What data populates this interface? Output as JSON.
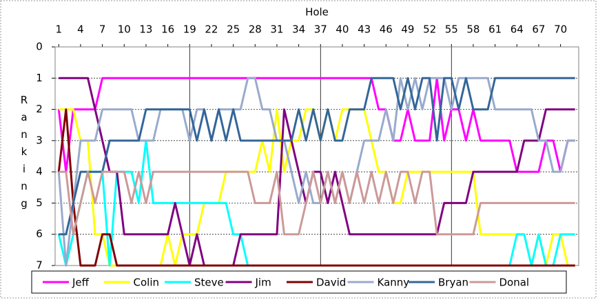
{
  "chart_data": {
    "type": "line",
    "x_label": "Hole",
    "y_label": "Ranking",
    "x": [
      1,
      2,
      3,
      4,
      5,
      6,
      7,
      8,
      9,
      10,
      11,
      12,
      13,
      14,
      15,
      16,
      17,
      18,
      19,
      20,
      21,
      22,
      23,
      24,
      25,
      26,
      27,
      28,
      29,
      30,
      31,
      32,
      33,
      34,
      35,
      36,
      37,
      38,
      39,
      40,
      41,
      42,
      43,
      44,
      45,
      46,
      47,
      48,
      49,
      50,
      51,
      52,
      53,
      54,
      55,
      56,
      57,
      58,
      59,
      60,
      61,
      62,
      63,
      64,
      65,
      66,
      67,
      68,
      69,
      70,
      71,
      72
    ],
    "xlim": [
      0.5,
      72.5
    ],
    "xticks": [
      1,
      4,
      7,
      10,
      13,
      16,
      19,
      22,
      25,
      28,
      31,
      34,
      37,
      40,
      43,
      46,
      49,
      52,
      55,
      58,
      61,
      64,
      67,
      70
    ],
    "x_gridlines": [
      19,
      37,
      55
    ],
    "ylim": [
      0,
      7
    ],
    "y_inverted": true,
    "yticks": [
      0,
      1,
      2,
      3,
      4,
      5,
      6,
      7
    ],
    "grid": true,
    "legend": "bottom",
    "series": [
      {
        "name": "Jeff",
        "color": "#ff00ff",
        "values": [
          2,
          4,
          2,
          2,
          2,
          2,
          1,
          1,
          1,
          1,
          1,
          1,
          1,
          1,
          1,
          1,
          1,
          1,
          1,
          1,
          1,
          1,
          1,
          1,
          1,
          1,
          1,
          1,
          1,
          1,
          1,
          1,
          1,
          1,
          1,
          1,
          1,
          1,
          1,
          1,
          1,
          1,
          1,
          1,
          2,
          2,
          3,
          3,
          2,
          3,
          3,
          3,
          1,
          3,
          2,
          2,
          3,
          2,
          3,
          3,
          3,
          3,
          3,
          4,
          4,
          4,
          4,
          3,
          3,
          4,
          3,
          3
        ]
      },
      {
        "name": "Colin",
        "color": "#ffff00",
        "values": [
          2,
          2,
          2,
          3,
          3,
          6,
          6,
          7,
          7,
          7,
          7,
          7,
          7,
          7,
          7,
          6,
          7,
          6,
          6,
          6,
          5,
          5,
          5,
          4,
          4,
          4,
          4,
          4,
          3,
          4,
          2,
          4,
          3,
          3,
          2,
          2,
          3,
          2,
          3,
          2,
          2,
          2,
          2,
          3,
          4,
          4,
          5,
          5,
          4,
          4,
          4,
          4,
          4,
          4,
          4,
          4,
          4,
          4,
          6,
          6,
          6,
          6,
          6,
          6,
          6,
          7,
          6,
          7,
          6,
          6,
          7,
          7
        ]
      },
      {
        "name": "Steve",
        "color": "#00ffff",
        "values": [
          6,
          7,
          6,
          5,
          4,
          4,
          4,
          7,
          4,
          4,
          4,
          5,
          3,
          5,
          5,
          5,
          5,
          5,
          5,
          5,
          5,
          5,
          5,
          5,
          6,
          6,
          7,
          7,
          7,
          7,
          7,
          7,
          7,
          7,
          7,
          7,
          7,
          7,
          7,
          7,
          7,
          7,
          7,
          7,
          7,
          7,
          7,
          7,
          7,
          7,
          7,
          7,
          7,
          7,
          7,
          7,
          7,
          7,
          7,
          7,
          7,
          7,
          7,
          6,
          6,
          7,
          6,
          7,
          7,
          6,
          6,
          6
        ]
      },
      {
        "name": "Jim",
        "color": "#800080",
        "values": [
          1,
          1,
          1,
          1,
          1,
          2,
          3,
          4,
          4,
          6,
          6,
          6,
          6,
          6,
          6,
          6,
          5,
          6,
          7,
          6,
          7,
          7,
          7,
          7,
          7,
          6,
          6,
          6,
          6,
          6,
          6,
          2,
          3,
          4,
          5,
          4,
          4,
          5,
          4,
          5,
          6,
          6,
          6,
          6,
          6,
          6,
          6,
          6,
          6,
          6,
          6,
          6,
          6,
          5,
          5,
          5,
          5,
          4,
          4,
          4,
          4,
          4,
          4,
          4,
          3,
          3,
          3,
          2,
          2,
          2,
          2,
          2
        ]
      },
      {
        "name": "David",
        "color": "#800000",
        "values": [
          4,
          2,
          5,
          7,
          7,
          7,
          6,
          6,
          7,
          7,
          7,
          7,
          7,
          7,
          7,
          7,
          7,
          7,
          7,
          7,
          7,
          7,
          7,
          7,
          7,
          7,
          7,
          7,
          7,
          7,
          7,
          7,
          7,
          7,
          7,
          7,
          7,
          7,
          7,
          7,
          7,
          7,
          7,
          7,
          7,
          7,
          7,
          7,
          7,
          7,
          7,
          7,
          7,
          7,
          7,
          7,
          7,
          7,
          7,
          7,
          7,
          7,
          7,
          7,
          7,
          7,
          7,
          7,
          7,
          7,
          7,
          7
        ]
      },
      {
        "name": "Kanny",
        "color": "#99aacc",
        "values": [
          4,
          7,
          5,
          3,
          3,
          3,
          2,
          2,
          2,
          2,
          2,
          3,
          3,
          3,
          2,
          2,
          2,
          2,
          3,
          2,
          2,
          3,
          2,
          2,
          2,
          2,
          1,
          1,
          2,
          2,
          3,
          3,
          4,
          5,
          4,
          5,
          5,
          4,
          5,
          4,
          5,
          4,
          3,
          3,
          3,
          2,
          3,
          1,
          2,
          1,
          2,
          1,
          1,
          1,
          2,
          1,
          1,
          1,
          1,
          1,
          2,
          2,
          2,
          2,
          2,
          2,
          3,
          3,
          4,
          4,
          3,
          3
        ]
      },
      {
        "name": "Bryan",
        "color": "#336699",
        "values": [
          6,
          6,
          5,
          4,
          4,
          4,
          4,
          3,
          3,
          3,
          3,
          3,
          2,
          2,
          2,
          2,
          2,
          2,
          2,
          3,
          2,
          3,
          2,
          3,
          2,
          3,
          3,
          3,
          3,
          3,
          3,
          3,
          3,
          2,
          3,
          2,
          3,
          2,
          3,
          3,
          2,
          2,
          2,
          1,
          1,
          1,
          1,
          2,
          1,
          2,
          1,
          1,
          3,
          1,
          1,
          2,
          1,
          2,
          2,
          2,
          1,
          1,
          1,
          1,
          1,
          1,
          1,
          1,
          1,
          1,
          1,
          1
        ]
      },
      {
        "name": "Donal",
        "color": "#cc9999",
        "values": [
          4,
          4,
          6,
          5,
          4,
          5,
          4,
          4,
          4,
          4,
          5,
          4,
          5,
          4,
          4,
          4,
          4,
          4,
          4,
          4,
          4,
          4,
          4,
          4,
          4,
          4,
          4,
          5,
          5,
          5,
          4,
          6,
          6,
          6,
          5,
          4,
          5,
          4,
          5,
          4,
          5,
          4,
          5,
          4,
          5,
          4,
          5,
          4,
          4,
          5,
          4,
          4,
          6,
          6,
          6,
          6,
          6,
          6,
          5,
          5,
          5,
          5,
          5,
          5,
          5,
          5,
          5,
          5,
          5,
          5,
          5,
          5
        ]
      }
    ]
  }
}
